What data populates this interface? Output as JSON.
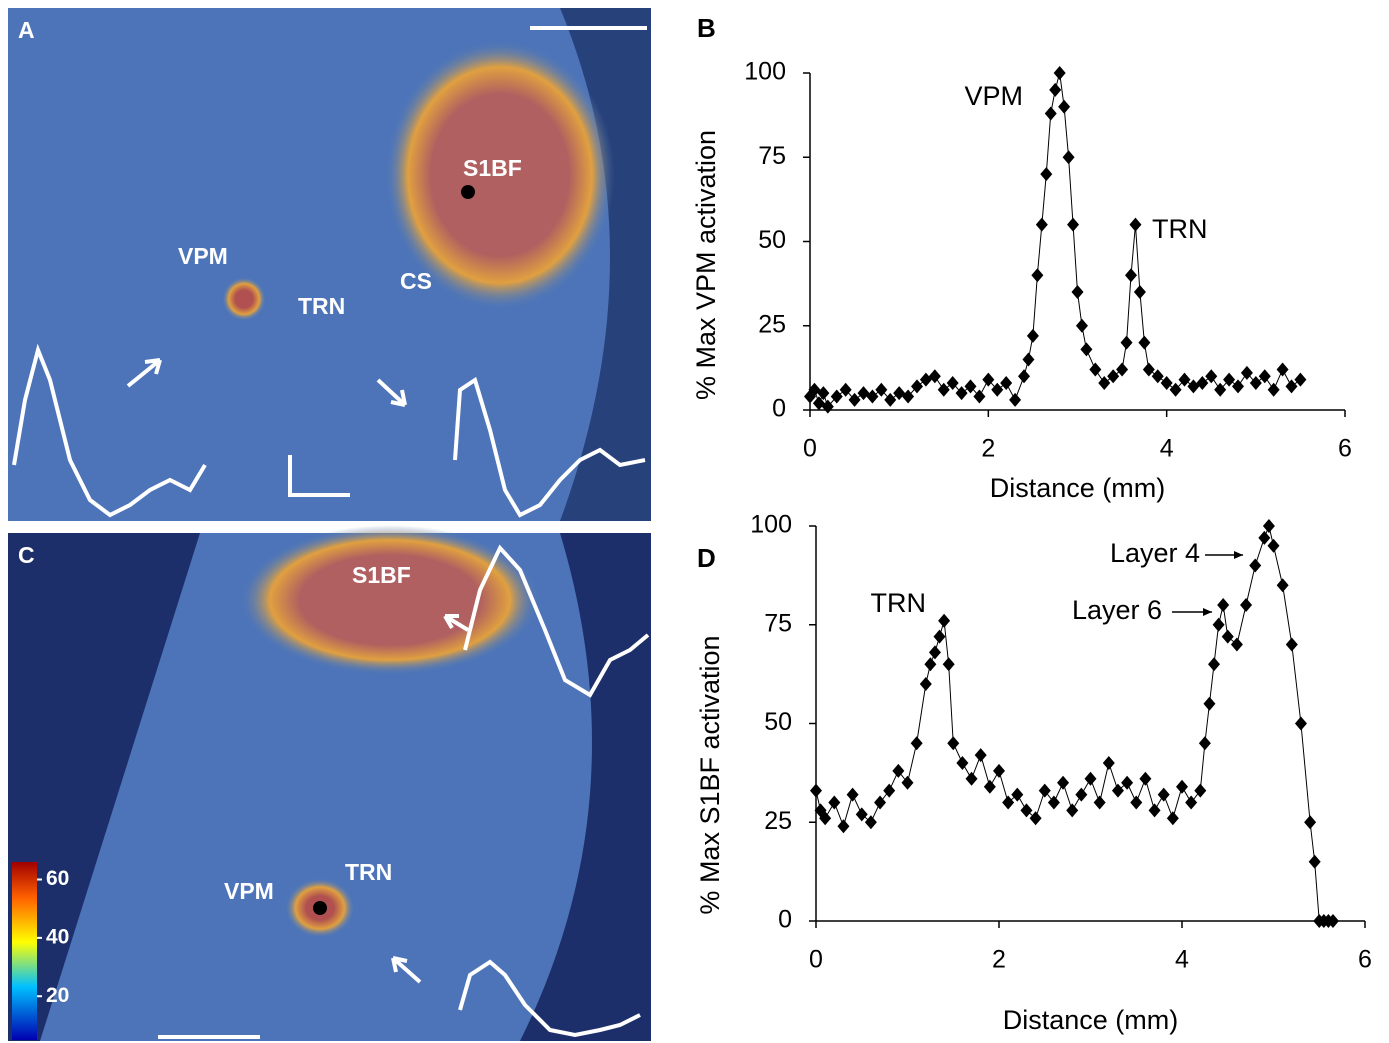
{
  "images": [
    {
      "panel_label": "A",
      "labels": [
        "S1BF",
        "VPM",
        "TRN",
        "CS"
      ]
    },
    {
      "panel_label": "C",
      "labels": [
        "S1BF",
        "VPM",
        "TRN"
      ],
      "colorbar_ticks": [
        20,
        40,
        60
      ],
      "colorbar_lim": [
        5,
        66
      ]
    }
  ],
  "chart_data": [
    {
      "type": "line",
      "panel_label": "B",
      "xlabel": "Distance (mm)",
      "ylabel": "% Max VPM activation",
      "annotations": [
        "VPM",
        "TRN"
      ],
      "xlim": [
        0,
        6
      ],
      "ylim": [
        0,
        100
      ],
      "xticks": [
        0,
        2,
        4,
        6
      ],
      "yticks": [
        0,
        25,
        50,
        75,
        100
      ],
      "color": "#000",
      "x": [
        0,
        0.05,
        0.1,
        0.15,
        0.2,
        0.3,
        0.4,
        0.5,
        0.6,
        0.7,
        0.8,
        0.9,
        1.0,
        1.1,
        1.2,
        1.3,
        1.4,
        1.5,
        1.6,
        1.7,
        1.8,
        1.9,
        2.0,
        2.1,
        2.2,
        2.3,
        2.4,
        2.45,
        2.5,
        2.55,
        2.6,
        2.65,
        2.7,
        2.75,
        2.8,
        2.85,
        2.9,
        2.95,
        3.0,
        3.05,
        3.1,
        3.2,
        3.3,
        3.4,
        3.5,
        3.55,
        3.6,
        3.65,
        3.7,
        3.75,
        3.8,
        3.9,
        4.0,
        4.1,
        4.2,
        4.3,
        4.4,
        4.5,
        4.6,
        4.7,
        4.8,
        4.9,
        5.0,
        5.1,
        5.2,
        5.3,
        5.4,
        5.5
      ],
      "values": [
        4,
        6,
        2,
        5,
        1,
        4,
        6,
        3,
        5,
        4,
        6,
        3,
        5,
        4,
        7,
        9,
        10,
        6,
        8,
        5,
        7,
        4,
        9,
        6,
        8,
        3,
        10,
        15,
        22,
        40,
        55,
        70,
        88,
        95,
        100,
        90,
        75,
        55,
        35,
        25,
        18,
        12,
        8,
        10,
        12,
        20,
        40,
        55,
        35,
        20,
        12,
        10,
        8,
        6,
        9,
        7,
        8,
        10,
        6,
        9,
        7,
        11,
        8,
        10,
        6,
        12,
        7,
        9
      ]
    },
    {
      "type": "line",
      "panel_label": "D",
      "xlabel": "Distance (mm)",
      "ylabel": "% Max S1BF activation",
      "annotations": [
        "TRN",
        "Layer 6",
        "Layer 4"
      ],
      "xlim": [
        0,
        6
      ],
      "ylim": [
        0,
        100
      ],
      "xticks": [
        0,
        2,
        4,
        6
      ],
      "yticks": [
        0,
        25,
        50,
        75,
        100
      ],
      "color": "#000",
      "x": [
        0,
        0.05,
        0.1,
        0.2,
        0.3,
        0.4,
        0.5,
        0.6,
        0.7,
        0.8,
        0.9,
        1.0,
        1.1,
        1.2,
        1.25,
        1.3,
        1.35,
        1.4,
        1.45,
        1.5,
        1.6,
        1.7,
        1.8,
        1.9,
        2.0,
        2.1,
        2.2,
        2.3,
        2.4,
        2.5,
        2.6,
        2.7,
        2.8,
        2.9,
        3.0,
        3.1,
        3.2,
        3.3,
        3.4,
        3.5,
        3.6,
        3.7,
        3.8,
        3.9,
        4.0,
        4.1,
        4.2,
        4.25,
        4.3,
        4.35,
        4.4,
        4.45,
        4.5,
        4.6,
        4.7,
        4.8,
        4.9,
        4.95,
        5.0,
        5.1,
        5.2,
        5.3,
        5.4,
        5.45,
        5.5,
        5.55,
        5.6,
        5.65
      ],
      "values": [
        33,
        28,
        26,
        30,
        24,
        32,
        27,
        25,
        30,
        33,
        38,
        35,
        45,
        60,
        65,
        68,
        72,
        76,
        65,
        45,
        40,
        36,
        42,
        34,
        38,
        30,
        32,
        28,
        26,
        33,
        30,
        35,
        28,
        32,
        36,
        30,
        40,
        33,
        35,
        30,
        36,
        28,
        32,
        26,
        34,
        30,
        33,
        45,
        55,
        65,
        75,
        80,
        72,
        70,
        80,
        90,
        97,
        100,
        95,
        85,
        70,
        50,
        25,
        15,
        0,
        0,
        0,
        0
      ]
    }
  ]
}
